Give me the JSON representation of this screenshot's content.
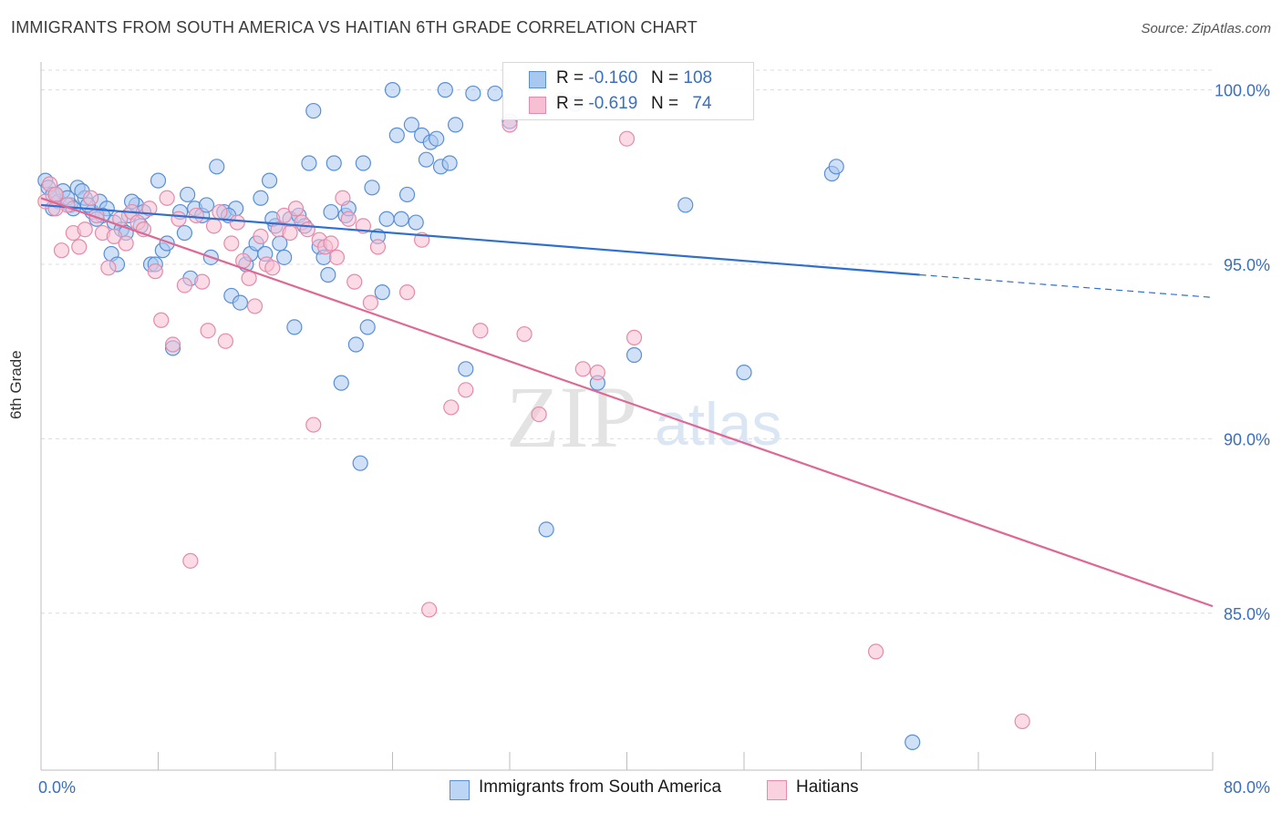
{
  "title": "IMMIGRANTS FROM SOUTH AMERICA VS HAITIAN 6TH GRADE CORRELATION CHART",
  "source": "Source: ZipAtlas.com",
  "watermark": {
    "zip": "ZIP",
    "atlas": "atlas"
  },
  "legend": {
    "series1": {
      "r_label": "R =",
      "r_value": "-0.160",
      "n_label": "N =",
      "n_value": "108"
    },
    "series2": {
      "r_label": "R =",
      "r_value": "-0.619",
      "n_label": "N =",
      "n_value": "74"
    }
  },
  "bottom_legend": {
    "series1": "Immigrants from South America",
    "series2": "Haitians"
  },
  "colors": {
    "blue_fill": "#a9c8f0",
    "blue_stroke": "#5a8fd6",
    "blue_line": "#2f6fd0",
    "pink_fill": "#f7bfd2",
    "pink_stroke": "#e58aaa",
    "pink_line": "#e06693",
    "axis_label_blue": "#3a6fc0",
    "grid": "#dcdcdc"
  },
  "chart_data": {
    "type": "scatter",
    "title": "IMMIGRANTS FROM SOUTH AMERICA VS HAITIAN 6TH GRADE CORRELATION CHART",
    "xlabel": "",
    "ylabel": "6th Grade",
    "xlim": [
      0,
      80
    ],
    "ylim": [
      80.5,
      100.8
    ],
    "x_tick_labels": [
      "0.0%",
      "80.0%"
    ],
    "y_ticks": [
      85,
      90,
      95,
      100
    ],
    "y_tick_labels": [
      "85.0%",
      "90.0%",
      "95.0%",
      "100.0%"
    ],
    "grid": true,
    "series": [
      {
        "name": "Immigrants from South America",
        "R": -0.16,
        "N": 108,
        "trend": {
          "x0": 0,
          "y0": 96.7,
          "x1": 60,
          "y1": 94.7,
          "dash_to_x": 80,
          "dash_to_y": 94.05
        },
        "points": [
          [
            0.3,
            97.4
          ],
          [
            0.5,
            97.2
          ],
          [
            0.8,
            97.0
          ],
          [
            1.2,
            96.8
          ],
          [
            1.5,
            97.1
          ],
          [
            2.0,
            96.7
          ],
          [
            2.5,
            97.2
          ],
          [
            3.0,
            96.9
          ],
          [
            3.5,
            96.5
          ],
          [
            4.0,
            96.8
          ],
          [
            4.5,
            96.6
          ],
          [
            5.0,
            96.2
          ],
          [
            5.5,
            96.0
          ],
          [
            6.0,
            96.4
          ],
          [
            6.5,
            96.7
          ],
          [
            7.0,
            96.5
          ],
          [
            0.8,
            96.6
          ],
          [
            1.8,
            96.9
          ],
          [
            2.8,
            97.1
          ],
          [
            3.2,
            96.7
          ],
          [
            4.2,
            96.4
          ],
          [
            4.8,
            95.3
          ],
          [
            5.2,
            95.0
          ],
          [
            6.2,
            96.8
          ],
          [
            6.8,
            96.1
          ],
          [
            7.5,
            95.0
          ],
          [
            8.0,
            97.4
          ],
          [
            8.3,
            95.4
          ],
          [
            8.6,
            95.6
          ],
          [
            9.0,
            92.6
          ],
          [
            9.5,
            96.5
          ],
          [
            9.8,
            95.9
          ],
          [
            10.0,
            97.0
          ],
          [
            10.5,
            96.6
          ],
          [
            11.0,
            96.4
          ],
          [
            11.3,
            96.7
          ],
          [
            11.6,
            95.2
          ],
          [
            12.0,
            97.8
          ],
          [
            12.5,
            96.5
          ],
          [
            13.0,
            94.1
          ],
          [
            13.3,
            96.6
          ],
          [
            13.6,
            93.9
          ],
          [
            14.0,
            95.0
          ],
          [
            14.3,
            95.3
          ],
          [
            14.7,
            95.6
          ],
          [
            15.0,
            96.9
          ],
          [
            15.3,
            95.3
          ],
          [
            15.6,
            97.4
          ],
          [
            16.0,
            96.1
          ],
          [
            16.3,
            95.6
          ],
          [
            16.6,
            95.2
          ],
          [
            17.0,
            96.3
          ],
          [
            17.3,
            93.2
          ],
          [
            17.6,
            96.4
          ],
          [
            18.0,
            96.1
          ],
          [
            18.3,
            97.9
          ],
          [
            18.6,
            99.4
          ],
          [
            19.0,
            95.5
          ],
          [
            19.3,
            95.2
          ],
          [
            19.6,
            94.7
          ],
          [
            20.0,
            97.9
          ],
          [
            20.5,
            91.6
          ],
          [
            20.8,
            96.4
          ],
          [
            21.0,
            96.6
          ],
          [
            21.5,
            92.7
          ],
          [
            21.8,
            89.3
          ],
          [
            22.0,
            97.9
          ],
          [
            22.3,
            93.2
          ],
          [
            22.6,
            97.2
          ],
          [
            23.0,
            95.8
          ],
          [
            23.3,
            94.2
          ],
          [
            23.6,
            96.3
          ],
          [
            24.0,
            100.0
          ],
          [
            24.3,
            98.7
          ],
          [
            24.6,
            96.3
          ],
          [
            25.0,
            97.0
          ],
          [
            25.3,
            99.0
          ],
          [
            25.6,
            96.2
          ],
          [
            26.0,
            98.7
          ],
          [
            26.3,
            98.0
          ],
          [
            26.6,
            98.5
          ],
          [
            27.0,
            98.6
          ],
          [
            27.3,
            97.8
          ],
          [
            27.6,
            100.0
          ],
          [
            27.9,
            97.9
          ],
          [
            28.3,
            99.0
          ],
          [
            29.0,
            92.0
          ],
          [
            29.5,
            99.9
          ],
          [
            31.0,
            99.9
          ],
          [
            32.0,
            99.1
          ],
          [
            34.5,
            87.4
          ],
          [
            36.5,
            99.6
          ],
          [
            38.0,
            91.6
          ],
          [
            40.5,
            92.4
          ],
          [
            44.0,
            96.7
          ],
          [
            48.0,
            91.9
          ],
          [
            54.0,
            97.6
          ],
          [
            54.3,
            97.8
          ],
          [
            59.5,
            81.3
          ],
          [
            1.0,
            97.0
          ],
          [
            2.2,
            96.6
          ],
          [
            3.8,
            96.3
          ],
          [
            5.8,
            95.9
          ],
          [
            7.8,
            95.0
          ],
          [
            10.2,
            94.6
          ],
          [
            12.8,
            96.4
          ],
          [
            15.8,
            96.3
          ],
          [
            19.8,
            96.5
          ]
        ]
      },
      {
        "name": "Haitians",
        "R": -0.619,
        "N": 74,
        "trend": {
          "x0": 0,
          "y0": 96.9,
          "x1": 80,
          "y1": 85.2
        },
        "points": [
          [
            0.3,
            96.8
          ],
          [
            0.6,
            97.3
          ],
          [
            1.0,
            97.0
          ],
          [
            1.4,
            95.4
          ],
          [
            1.8,
            96.7
          ],
          [
            2.2,
            95.9
          ],
          [
            2.6,
            95.5
          ],
          [
            3.0,
            96.0
          ],
          [
            3.4,
            96.9
          ],
          [
            3.8,
            96.4
          ],
          [
            4.2,
            95.9
          ],
          [
            4.6,
            94.9
          ],
          [
            5.0,
            95.8
          ],
          [
            5.4,
            96.3
          ],
          [
            5.8,
            95.6
          ],
          [
            6.2,
            96.5
          ],
          [
            6.6,
            96.2
          ],
          [
            7.0,
            96.0
          ],
          [
            7.4,
            96.6
          ],
          [
            7.8,
            94.8
          ],
          [
            8.2,
            93.4
          ],
          [
            8.6,
            96.9
          ],
          [
            9.0,
            92.7
          ],
          [
            9.4,
            96.3
          ],
          [
            9.8,
            94.4
          ],
          [
            10.2,
            86.5
          ],
          [
            10.6,
            96.4
          ],
          [
            11.0,
            94.5
          ],
          [
            11.4,
            93.1
          ],
          [
            11.8,
            96.1
          ],
          [
            12.2,
            96.5
          ],
          [
            12.6,
            92.8
          ],
          [
            13.0,
            95.6
          ],
          [
            13.4,
            96.2
          ],
          [
            13.8,
            95.1
          ],
          [
            14.2,
            94.6
          ],
          [
            14.6,
            93.8
          ],
          [
            15.0,
            95.8
          ],
          [
            15.4,
            95.0
          ],
          [
            15.8,
            94.9
          ],
          [
            16.2,
            96.0
          ],
          [
            16.6,
            96.4
          ],
          [
            17.0,
            95.9
          ],
          [
            17.4,
            96.6
          ],
          [
            17.8,
            96.2
          ],
          [
            18.2,
            96.0
          ],
          [
            18.6,
            90.4
          ],
          [
            19.0,
            95.7
          ],
          [
            19.4,
            95.5
          ],
          [
            19.8,
            95.6
          ],
          [
            20.2,
            95.2
          ],
          [
            20.6,
            96.9
          ],
          [
            21.0,
            96.3
          ],
          [
            21.4,
            94.5
          ],
          [
            22.0,
            96.1
          ],
          [
            22.5,
            93.9
          ],
          [
            23.0,
            95.5
          ],
          [
            25.0,
            94.2
          ],
          [
            26.0,
            95.7
          ],
          [
            26.5,
            85.1
          ],
          [
            28.0,
            90.9
          ],
          [
            29.0,
            91.4
          ],
          [
            30.0,
            93.1
          ],
          [
            32.0,
            99.0
          ],
          [
            33.0,
            93.0
          ],
          [
            34.0,
            90.7
          ],
          [
            35.5,
            99.7
          ],
          [
            37.0,
            92.0
          ],
          [
            38.0,
            91.9
          ],
          [
            40.0,
            98.6
          ],
          [
            40.5,
            92.9
          ],
          [
            57.0,
            83.9
          ],
          [
            67.0,
            81.9
          ],
          [
            1.0,
            96.6
          ]
        ]
      }
    ]
  }
}
